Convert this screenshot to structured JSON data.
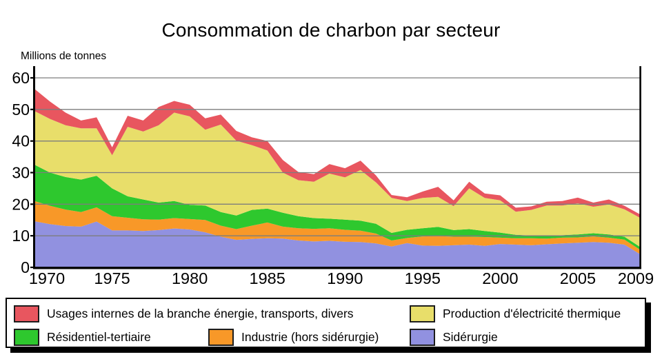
{
  "chart_data": {
    "type": "area",
    "stacked": true,
    "title": "Consommation de charbon par secteur",
    "ylabel": "Millions de tonnes",
    "xlabel": "",
    "ylim": [
      0,
      60
    ],
    "y_ticks": [
      0,
      10,
      20,
      30,
      40,
      50,
      60
    ],
    "x_tick_labels": [
      "1970",
      "1975",
      "1980",
      "1985",
      "1990",
      "1995",
      "2000",
      "2005",
      "2009"
    ],
    "grid": "horizontal",
    "legend_position": "bottom",
    "years": [
      1970,
      1971,
      1972,
      1973,
      1974,
      1975,
      1976,
      1977,
      1978,
      1979,
      1980,
      1981,
      1982,
      1983,
      1984,
      1985,
      1986,
      1987,
      1988,
      1989,
      1990,
      1991,
      1992,
      1993,
      1994,
      1995,
      1996,
      1997,
      1998,
      1999,
      2000,
      2001,
      2002,
      2003,
      2004,
      2005,
      2006,
      2007,
      2008,
      2009
    ],
    "series": [
      {
        "key": "siderurgie",
        "name": "Sidérurgie",
        "color": "#9191e0",
        "values": [
          14.6,
          13.7,
          13.1,
          12.9,
          14.5,
          11.7,
          11.7,
          11.5,
          11.8,
          12.3,
          12.0,
          11.1,
          9.7,
          8.7,
          9.0,
          9.2,
          9.1,
          8.5,
          8.2,
          8.4,
          8.1,
          8.0,
          7.6,
          6.6,
          7.7,
          6.9,
          6.8,
          7.0,
          7.2,
          6.8,
          7.4,
          7.2,
          7.0,
          7.3,
          7.6,
          7.8,
          8.0,
          7.8,
          7.2,
          4.2
        ]
      },
      {
        "key": "industrie",
        "name": "Industrie (hors sidérurgie)",
        "color": "#f89828",
        "values": [
          6.4,
          5.8,
          5.2,
          4.6,
          4.5,
          4.5,
          4.0,
          3.7,
          3.3,
          3.3,
          3.3,
          3.9,
          3.5,
          3.4,
          4.2,
          5.0,
          3.8,
          3.9,
          4.0,
          4.0,
          3.8,
          3.6,
          3.1,
          1.9,
          1.6,
          2.9,
          3.1,
          2.7,
          2.5,
          2.8,
          2.0,
          2.0,
          2.2,
          1.8,
          1.8,
          1.7,
          1.8,
          1.6,
          1.6,
          1.4
        ]
      },
      {
        "key": "residentiel-tertiaire",
        "name": "Résidentiel-tertiaire",
        "color": "#2ec82e",
        "values": [
          11.5,
          10.5,
          10.3,
          10.3,
          10.0,
          8.8,
          6.8,
          6.3,
          5.4,
          5.4,
          4.5,
          4.6,
          4.3,
          4.3,
          5.0,
          4.4,
          4.4,
          3.8,
          3.4,
          3.0,
          3.2,
          3.2,
          3.1,
          2.4,
          2.6,
          2.6,
          2.9,
          2.1,
          2.4,
          1.9,
          1.6,
          1.1,
          0.9,
          0.9,
          0.8,
          0.9,
          1.0,
          1.0,
          0.9,
          0.9
        ]
      },
      {
        "key": "electricite-thermique",
        "name": "Production d'électricité thermique",
        "color": "#e8de6a",
        "values": [
          17.0,
          17.0,
          16.4,
          16.2,
          15.0,
          10.5,
          22.0,
          21.5,
          24.5,
          28.0,
          28.0,
          24.0,
          27.7,
          23.7,
          20.5,
          18.4,
          12.7,
          11.4,
          11.5,
          14.3,
          13.4,
          16.0,
          13.1,
          11.1,
          9.1,
          9.6,
          9.5,
          7.6,
          12.9,
          10.5,
          10.2,
          7.3,
          8.1,
          9.6,
          9.4,
          9.9,
          8.4,
          9.5,
          8.7,
          9.2
        ]
      },
      {
        "key": "usages-internes",
        "name": "Usages internes de la branche énergie, transports, divers",
        "color": "#e8565f",
        "values": [
          7.0,
          5.5,
          4.0,
          2.5,
          3.5,
          2.5,
          3.5,
          3.5,
          5.8,
          3.7,
          3.7,
          3.6,
          3.2,
          3.1,
          2.5,
          3.0,
          4.0,
          2.6,
          2.4,
          3.0,
          2.9,
          3.0,
          2.2,
          0.9,
          1.2,
          2.0,
          3.2,
          1.8,
          2.1,
          1.4,
          1.6,
          1.3,
          1.1,
          1.2,
          1.4,
          1.8,
          1.3,
          1.6,
          1.1,
          1.1
        ]
      }
    ]
  },
  "legend": {
    "items": [
      {
        "label": "Usages internes de la branche énergie, transports, divers",
        "color": "#e8565f"
      },
      {
        "label": "Production d'électricité thermique",
        "color": "#e8de6a"
      },
      {
        "label": "Résidentiel-tertiaire",
        "color": "#2ec82e"
      },
      {
        "label": "Industrie (hors sidérurgie)",
        "color": "#f89828"
      },
      {
        "label": "Sidérurgie",
        "color": "#9191e0"
      }
    ]
  }
}
